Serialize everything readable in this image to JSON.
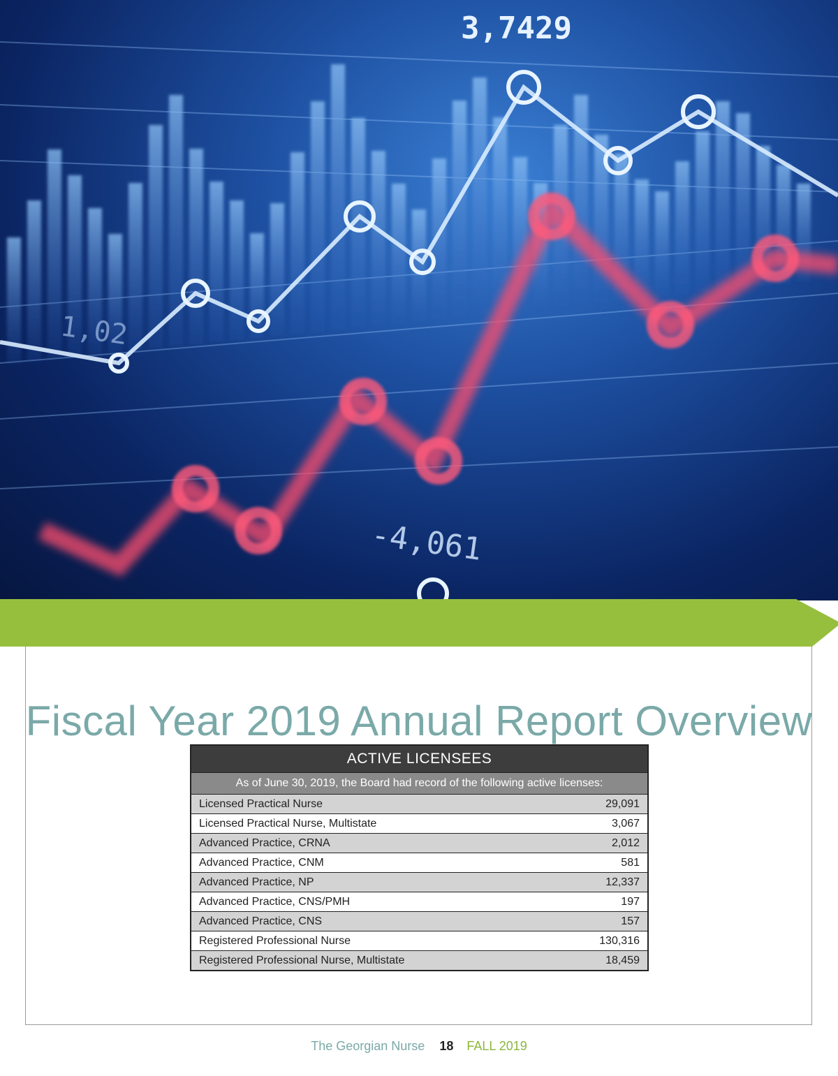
{
  "hero": {
    "overlay_numbers": [
      "3,7429",
      "1,02",
      "-4,061"
    ],
    "colors": {
      "line": "#cfe6ff",
      "red_line": "#ff4d6d",
      "bars": "#6fa8e8"
    }
  },
  "band": {
    "color": "#97bf3e"
  },
  "page": {
    "title": "Fiscal Year 2019 Annual Report Overview"
  },
  "table": {
    "header": "ACTIVE LICENSEES",
    "subheader": "As of June 30, 2019, the Board had record of the following active licenses:",
    "rows": [
      {
        "label": "Licensed Practical Nurse",
        "value": "29,091"
      },
      {
        "label": "Licensed Practical Nurse, Multistate",
        "value": "3,067"
      },
      {
        "label": "Advanced Practice, CRNA",
        "value": "2,012"
      },
      {
        "label": "Advanced Practice, CNM",
        "value": "581"
      },
      {
        "label": "Advanced Practice, NP",
        "value": "12,337"
      },
      {
        "label": "Advanced Practice, CNS/PMH",
        "value": "197"
      },
      {
        "label": "Advanced Practice, CNS",
        "value": "157"
      },
      {
        "label": "Registered Professional Nurse",
        "value": "130,316"
      },
      {
        "label": "Registered Professional Nurse, Multistate",
        "value": "18,459"
      }
    ]
  },
  "footer": {
    "publication": "The Georgian Nurse",
    "page_number": "18",
    "issue": "FALL 2019"
  }
}
